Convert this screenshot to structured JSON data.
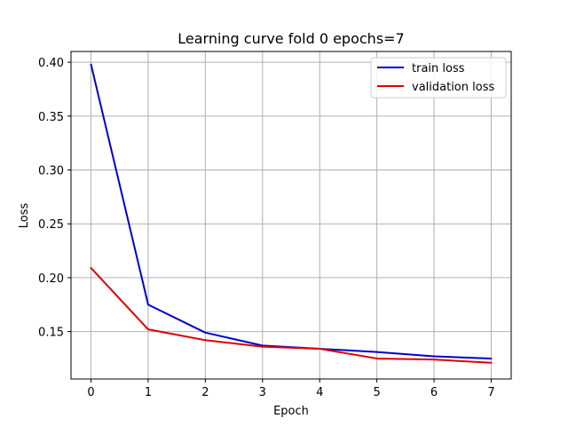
{
  "chart_data": {
    "type": "line",
    "title": "Learning curve fold 0 epochs=7",
    "xlabel": "Epoch",
    "ylabel": "Loss",
    "x": [
      0,
      1,
      2,
      3,
      4,
      5,
      6,
      7
    ],
    "xlim": [
      -0.35,
      7.35
    ],
    "ylim": [
      0.106,
      0.41
    ],
    "xticks": [
      0,
      1,
      2,
      3,
      4,
      5,
      6,
      7
    ],
    "yticks": [
      0.15,
      0.2,
      0.25,
      0.3,
      0.35,
      0.4
    ],
    "ytick_labels": [
      "0.15",
      "0.20",
      "0.25",
      "0.30",
      "0.35",
      "0.40"
    ],
    "grid": true,
    "legend_position": "top-right",
    "series": [
      {
        "name": "train loss",
        "color": "#0000cc",
        "values": [
          0.398,
          0.175,
          0.149,
          0.137,
          0.134,
          0.131,
          0.127,
          0.125
        ]
      },
      {
        "name": "validation loss",
        "color": "#dd0000",
        "values": [
          0.209,
          0.152,
          0.142,
          0.136,
          0.134,
          0.125,
          0.124,
          0.121
        ]
      }
    ]
  }
}
